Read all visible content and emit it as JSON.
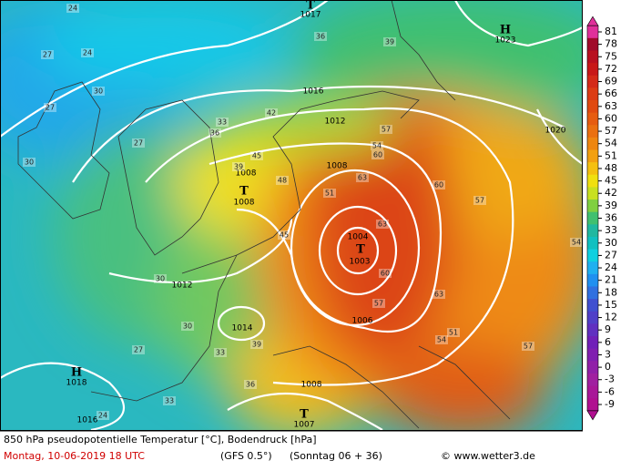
{
  "map": {
    "pressure_labels": [
      "1017",
      "1023",
      "1016",
      "1012",
      "1020",
      "1008",
      "1008",
      "1008",
      "1004",
      "1003",
      "1012",
      "1014",
      "1018",
      "1016",
      "1006",
      "1008",
      "1007"
    ],
    "centers": [
      "T",
      "H",
      "T",
      "T",
      "H",
      "T"
    ],
    "temperature_labels": [
      "24",
      "27",
      "24",
      "30",
      "27",
      "27",
      "30",
      "33",
      "36",
      "39",
      "42",
      "45",
      "48",
      "51",
      "54",
      "57",
      "60",
      "63",
      "63",
      "60",
      "57",
      "54",
      "51",
      "45",
      "39",
      "36",
      "33",
      "30",
      "27",
      "24",
      "30",
      "33",
      "36",
      "39",
      "57",
      "60",
      "63",
      "57",
      "54"
    ]
  },
  "legend": {
    "ticks": [
      81,
      78,
      75,
      72,
      69,
      66,
      63,
      60,
      57,
      54,
      51,
      48,
      45,
      42,
      39,
      36,
      33,
      30,
      27,
      24,
      21,
      18,
      15,
      12,
      9,
      6,
      3,
      0,
      -3,
      -6,
      -9
    ],
    "colors": [
      "#e0309a",
      "#a00a2a",
      "#b81020",
      "#c81818",
      "#d42a18",
      "#dc3c14",
      "#e04a10",
      "#e65c10",
      "#ea7010",
      "#ee8610",
      "#f2a010",
      "#f4c010",
      "#f0e010",
      "#c8e020",
      "#80d040",
      "#40c070",
      "#20b8a0",
      "#10c0c0",
      "#10d0e0",
      "#20b0f0",
      "#2090f0",
      "#3070e0",
      "#4050d0",
      "#5040c8",
      "#6030c0",
      "#7020b8",
      "#8020b0",
      "#9020a8",
      "#a020a0",
      "#a81898",
      "#b01090"
    ]
  },
  "footer": {
    "title": "850 hPa pseudopotentielle Temperatur [°C], Bodendruck [hPa]",
    "date": "Montag, 10-06-2019  18 UTC",
    "model": "(GFS 0.5°)",
    "run": "(Sonntag 06 + 36)",
    "credit": "© www.wetter3.de"
  }
}
